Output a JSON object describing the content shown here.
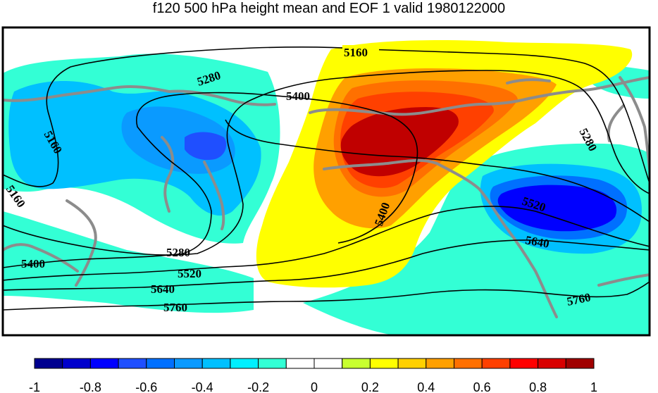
{
  "title": "f120 500 hPa height mean and EOF 1 valid 1980122000",
  "contour_labels": {
    "c5160_top": "5160",
    "c5160_left": "5160",
    "c5160_left2": "5160",
    "c5280_top": "5280",
    "c5280_right": "5280",
    "c5280_bottom": "5280",
    "c5400_top": "5400",
    "c5400_center": "5400",
    "c5400_left": "5400",
    "c5520_right": "5520",
    "c5520_bottom": "5520",
    "c5640_right": "5640",
    "c5640_bottom": "5640",
    "c5760_right": "5760",
    "c5760_bottom": "5760"
  },
  "colorbar": {
    "ticks": [
      "-1",
      "-0.8",
      "-0.6",
      "-0.4",
      "-0.2",
      "0",
      "0.2",
      "0.4",
      "0.6",
      "0.8",
      "1"
    ],
    "colors": [
      "#00008f",
      "#0000cc",
      "#0000ff",
      "#1f4fff",
      "#0070ff",
      "#0a9aff",
      "#00c0ff",
      "#00f0ff",
      "#33ffd5",
      "#ffffff",
      "#ffffff",
      "#c8ff30",
      "#ffff00",
      "#ffd000",
      "#ffa000",
      "#ff7000",
      "#ff4000",
      "#ff0000",
      "#d80000",
      "#a00000"
    ]
  },
  "colors": {
    "coastline": "#8c8c8c",
    "contour": "#000000"
  }
}
